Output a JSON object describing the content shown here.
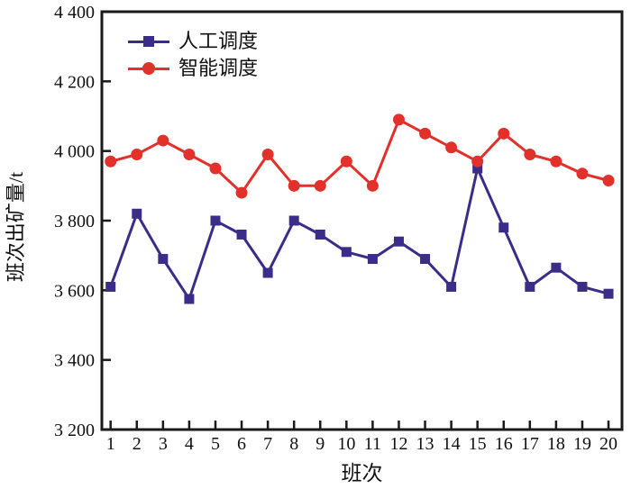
{
  "figure": {
    "background": "#ffffff",
    "frame_color": "#1a1a1a",
    "text_color": "#111111"
  },
  "chart_data": {
    "type": "line",
    "title": "",
    "xlabel": "班次",
    "ylabel": "班次出矿量/t",
    "x": [
      1,
      2,
      3,
      4,
      5,
      6,
      7,
      8,
      9,
      10,
      11,
      12,
      13,
      14,
      15,
      16,
      17,
      18,
      19,
      20
    ],
    "xtick_labels": [
      "1",
      "2",
      "3",
      "4",
      "5",
      "6",
      "7",
      "8",
      "9",
      "10",
      "11",
      "12",
      "13",
      "14",
      "15",
      "16",
      "17",
      "18",
      "19",
      "20"
    ],
    "ylim": [
      3200,
      4400
    ],
    "yticks": [
      3200,
      3400,
      3600,
      3800,
      4000,
      4200,
      4400
    ],
    "ytick_labels": [
      "3 200",
      "3 400",
      "3 600",
      "3 800",
      "4 000",
      "4 200",
      "4 400"
    ],
    "grid": false,
    "legend_position": "top-left-inside",
    "series": [
      {
        "name": "人工调度",
        "color": "#3a2d8a",
        "marker": "square",
        "values": [
          3610,
          3820,
          3690,
          3575,
          3800,
          3760,
          3650,
          3800,
          3760,
          3710,
          3690,
          3740,
          3690,
          3610,
          3950,
          3780,
          3610,
          3665,
          3610,
          3590
        ]
      },
      {
        "name": "智能调度",
        "color": "#e2302a",
        "marker": "circle",
        "values": [
          3970,
          3990,
          4030,
          3990,
          3950,
          3880,
          3990,
          3900,
          3900,
          3970,
          3900,
          4090,
          4050,
          4010,
          3970,
          4050,
          3990,
          3970,
          3935,
          3915
        ]
      }
    ]
  }
}
